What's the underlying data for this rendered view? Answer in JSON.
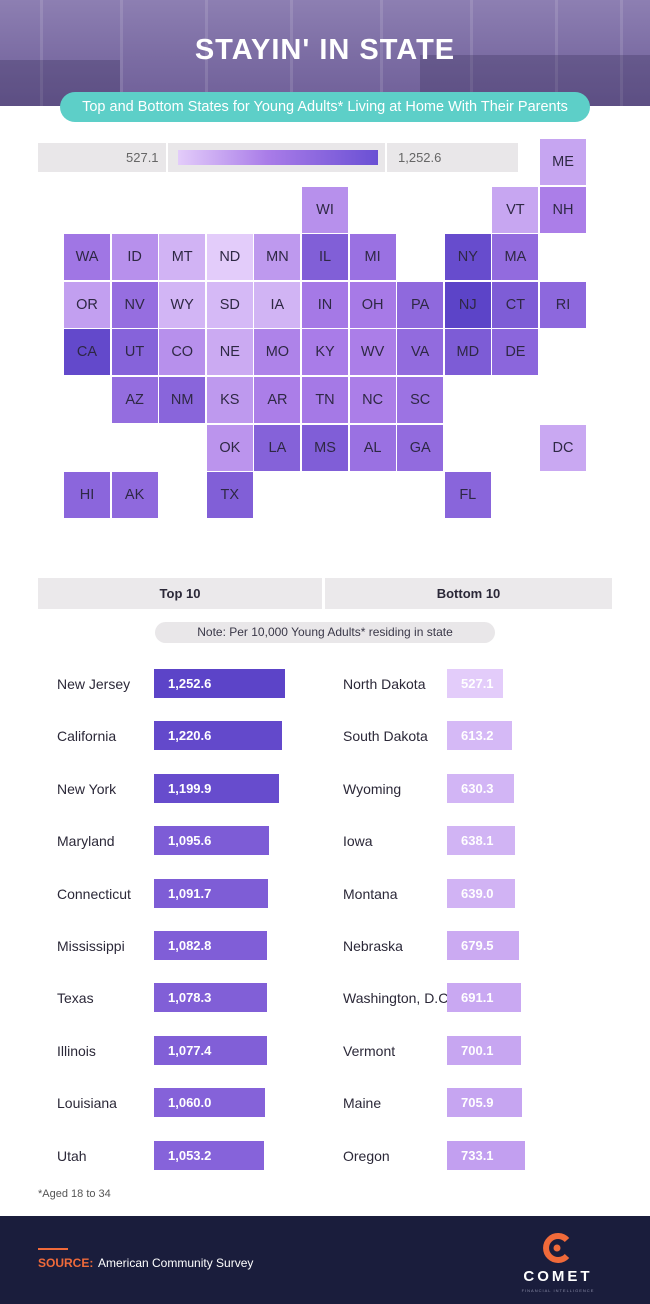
{
  "header": {
    "title": "STAYIN' IN STATE",
    "subtitle": "Top and Bottom States for Young Adults* Living at Home With Their Parents"
  },
  "legend": {
    "min_label": "527.1",
    "max_label": "1,252.6"
  },
  "colors": {
    "scale_low": "#e3ccfa",
    "scale_mid": "#a97ce8",
    "scale_high": "#5c44c8",
    "subtitle_pill": "#5dcfc8",
    "footer_bg": "#1a1d3c",
    "accent_orange": "#f06a3a"
  },
  "chart_data": [
    {
      "type": "heatmap",
      "title": "STAYIN' IN STATE",
      "subtitle": "Top and Bottom States for Young Adults* Living at Home With Their Parents",
      "color_scale": {
        "min": 527.1,
        "max": 1252.6
      },
      "tiles": [
        {
          "state": "ME",
          "row": 0,
          "col": 10,
          "value": 705.9
        },
        {
          "state": "WI",
          "row": 1,
          "col": 5,
          "value": 800
        },
        {
          "state": "VT",
          "row": 1,
          "col": 9,
          "value": 700.1
        },
        {
          "state": "NH",
          "row": 1,
          "col": 10,
          "value": 880
        },
        {
          "state": "WA",
          "row": 2,
          "col": 0,
          "value": 930
        },
        {
          "state": "ID",
          "row": 2,
          "col": 1,
          "value": 800
        },
        {
          "state": "MT",
          "row": 2,
          "col": 2,
          "value": 639.0
        },
        {
          "state": "ND",
          "row": 2,
          "col": 3,
          "value": 527.1
        },
        {
          "state": "MN",
          "row": 2,
          "col": 4,
          "value": 760
        },
        {
          "state": "IL",
          "row": 2,
          "col": 5,
          "value": 1077.4
        },
        {
          "state": "MI",
          "row": 2,
          "col": 6,
          "value": 960
        },
        {
          "state": "NY",
          "row": 2,
          "col": 8,
          "value": 1199.9
        },
        {
          "state": "MA",
          "row": 2,
          "col": 9,
          "value": 1000
        },
        {
          "state": "OR",
          "row": 3,
          "col": 0,
          "value": 733.1
        },
        {
          "state": "NV",
          "row": 3,
          "col": 1,
          "value": 980
        },
        {
          "state": "WY",
          "row": 3,
          "col": 2,
          "value": 630.3
        },
        {
          "state": "SD",
          "row": 3,
          "col": 3,
          "value": 613.2
        },
        {
          "state": "IA",
          "row": 3,
          "col": 4,
          "value": 638.1
        },
        {
          "state": "IN",
          "row": 3,
          "col": 5,
          "value": 910
        },
        {
          "state": "OH",
          "row": 3,
          "col": 6,
          "value": 900
        },
        {
          "state": "PA",
          "row": 3,
          "col": 7,
          "value": 1010
        },
        {
          "state": "NJ",
          "row": 3,
          "col": 8,
          "value": 1252.6
        },
        {
          "state": "CT",
          "row": 3,
          "col": 9,
          "value": 1091.7
        },
        {
          "state": "RI",
          "row": 3,
          "col": 10,
          "value": 1020
        },
        {
          "state": "CA",
          "row": 4,
          "col": 0,
          "value": 1220.6
        },
        {
          "state": "UT",
          "row": 4,
          "col": 1,
          "value": 1053.2
        },
        {
          "state": "CO",
          "row": 4,
          "col": 2,
          "value": 800
        },
        {
          "state": "NE",
          "row": 4,
          "col": 3,
          "value": 679.5
        },
        {
          "state": "MO",
          "row": 4,
          "col": 4,
          "value": 860
        },
        {
          "state": "KY",
          "row": 4,
          "col": 5,
          "value": 890
        },
        {
          "state": "WV",
          "row": 4,
          "col": 6,
          "value": 880
        },
        {
          "state": "VA",
          "row": 4,
          "col": 7,
          "value": 1000
        },
        {
          "state": "MD",
          "row": 4,
          "col": 8,
          "value": 1095.6
        },
        {
          "state": "DE",
          "row": 4,
          "col": 9,
          "value": 1030
        },
        {
          "state": "AZ",
          "row": 5,
          "col": 1,
          "value": 990
        },
        {
          "state": "NM",
          "row": 5,
          "col": 2,
          "value": 1040
        },
        {
          "state": "KS",
          "row": 5,
          "col": 3,
          "value": 760
        },
        {
          "state": "AR",
          "row": 5,
          "col": 4,
          "value": 880
        },
        {
          "state": "TN",
          "row": 5,
          "col": 5,
          "value": 910
        },
        {
          "state": "NC",
          "row": 5,
          "col": 6,
          "value": 880
        },
        {
          "state": "SC",
          "row": 5,
          "col": 7,
          "value": 950
        },
        {
          "state": "OK",
          "row": 6,
          "col": 3,
          "value": 780
        },
        {
          "state": "LA",
          "row": 6,
          "col": 4,
          "value": 1060.0
        },
        {
          "state": "MS",
          "row": 6,
          "col": 5,
          "value": 1082.8
        },
        {
          "state": "AL",
          "row": 6,
          "col": 6,
          "value": 960
        },
        {
          "state": "GA",
          "row": 6,
          "col": 7,
          "value": 1000
        },
        {
          "state": "DC",
          "row": 6,
          "col": 10,
          "value": 691.1
        },
        {
          "state": "HI",
          "row": 7,
          "col": 0,
          "value": 1030
        },
        {
          "state": "AK",
          "row": 7,
          "col": 1,
          "value": 1010
        },
        {
          "state": "TX",
          "row": 7,
          "col": 3,
          "value": 1078.3
        },
        {
          "state": "FL",
          "row": 7,
          "col": 8,
          "value": 1040
        }
      ]
    },
    {
      "type": "bar",
      "title": "Top 10",
      "categories": [
        "New Jersey",
        "California",
        "New York",
        "Maryland",
        "Connecticut",
        "Mississippi",
        "Texas",
        "Illinois",
        "Louisiana",
        "Utah"
      ],
      "values": [
        1252.6,
        1220.6,
        1199.9,
        1095.6,
        1091.7,
        1082.8,
        1078.3,
        1077.4,
        1060.0,
        1053.2
      ],
      "labels": [
        "1,252.6",
        "1,220.6",
        "1,199.9",
        "1,095.6",
        "1,091.7",
        "1,082.8",
        "1,078.3",
        "1,077.4",
        "1,060.0",
        "1,053.2"
      ]
    },
    {
      "type": "bar",
      "title": "Bottom 10",
      "categories": [
        "North Dakota",
        "South Dakota",
        "Wyoming",
        "Iowa",
        "Montana",
        "Nebraska",
        "Washington, D.C.",
        "Vermont",
        "Maine",
        "Oregon"
      ],
      "values": [
        527.1,
        613.2,
        630.3,
        638.1,
        639.0,
        679.5,
        691.1,
        700.1,
        705.9,
        733.1
      ],
      "labels": [
        "527.1",
        "613.2",
        "630.3",
        "638.1",
        "639.0",
        "679.5",
        "691.1",
        "700.1",
        "705.9",
        "733.1"
      ]
    }
  ],
  "tabs": {
    "top_label": "Top 10",
    "bottom_label": "Bottom 10"
  },
  "note": "Note: Per 10,000 Young Adults* residing in state",
  "footnote": "*Aged 18 to 34",
  "footer": {
    "source_label": "SOURCE:",
    "source_text": "American Community Survey",
    "logo_text": "COMET",
    "logo_sub": "FINANCIAL INTELLIGENCE"
  }
}
